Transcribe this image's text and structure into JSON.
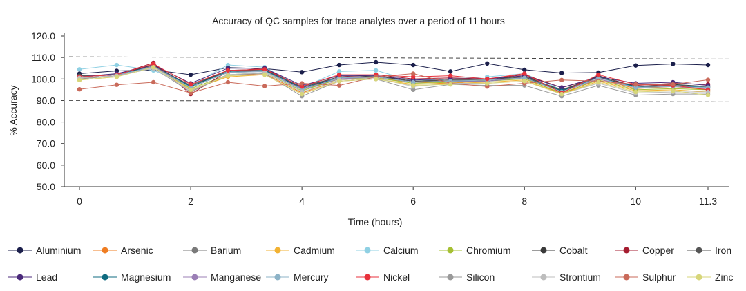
{
  "chart_data": {
    "type": "line",
    "title": "Accuracy of QC samples for trace analytes over a period of 11 hours",
    "xlabel": "Time (hours)",
    "ylabel": "% Accuracy",
    "xlim": [
      0,
      11.3
    ],
    "ylim": [
      50,
      120
    ],
    "x_ticks": [
      0,
      2,
      4,
      6,
      8,
      10,
      11.3
    ],
    "x_tick_labels": [
      "0",
      "2",
      "4",
      "6",
      "8",
      "10",
      "11.3"
    ],
    "y_ticks": [
      50,
      60,
      70,
      80,
      90,
      100,
      110,
      120
    ],
    "y_tick_labels": [
      "50.0",
      "60.0",
      "70.0",
      "80.0",
      "90.0",
      "100.0",
      "110.0",
      "120.0"
    ],
    "reference_lines": [
      {
        "style": "dashed",
        "from": [
          0,
          110.3
        ],
        "to": [
          11.3,
          109.3
        ]
      },
      {
        "style": "dashed",
        "from": [
          0,
          90.0
        ],
        "to": [
          11.3,
          89.4
        ]
      }
    ],
    "x": [
      0,
      0.67,
      1.33,
      2,
      2.67,
      3.33,
      4,
      4.67,
      5.33,
      6,
      6.67,
      7.33,
      8,
      8.67,
      9.33,
      10,
      10.67,
      11.3
    ],
    "legend_position": "bottom",
    "series": [
      {
        "name": "Aluminium",
        "color": "#1b1f4b",
        "values": [
          102.5,
          103.8,
          104.2,
          102.0,
          105.3,
          104.8,
          103.2,
          106.5,
          107.8,
          106.5,
          103.5,
          107.2,
          104.3,
          102.8,
          103.0,
          106.3,
          107.0,
          106.5
        ]
      },
      {
        "name": "Arsenic",
        "color": "#ef7d22",
        "values": [
          100.5,
          101.5,
          107.0,
          94.5,
          101.5,
          102.5,
          93.5,
          99.5,
          100.5,
          98.5,
          98.0,
          99.5,
          100.5,
          93.0,
          100.0,
          95.5,
          96.5,
          95.0
        ]
      },
      {
        "name": "Barium",
        "color": "#7a7a7a",
        "values": [
          101.0,
          102.0,
          106.0,
          96.0,
          103.0,
          104.0,
          95.0,
          100.0,
          101.0,
          99.0,
          99.0,
          99.0,
          101.0,
          94.0,
          101.0,
          96.0,
          97.0,
          96.0
        ]
      },
      {
        "name": "Cadmium",
        "color": "#f2b233",
        "values": [
          99.5,
          101.0,
          106.5,
          95.0,
          101.0,
          102.0,
          93.0,
          99.0,
          100.0,
          97.5,
          98.0,
          98.5,
          99.5,
          93.0,
          99.0,
          94.5,
          95.0,
          94.0
        ]
      },
      {
        "name": "Calcium",
        "color": "#8fd0e3",
        "values": [
          104.5,
          106.5,
          104.0,
          97.0,
          106.5,
          105.5,
          96.0,
          103.5,
          104.0,
          99.0,
          100.0,
          101.0,
          102.5,
          95.0,
          100.5,
          96.0,
          97.0,
          96.0
        ]
      },
      {
        "name": "Chromium",
        "color": "#a6c033",
        "values": [
          100.0,
          101.5,
          106.0,
          95.5,
          102.0,
          103.0,
          94.5,
          100.0,
          100.5,
          98.0,
          98.5,
          99.0,
          100.0,
          93.5,
          99.5,
          95.0,
          95.5,
          95.0
        ]
      },
      {
        "name": "Cobalt",
        "color": "#3a3a3a",
        "values": [
          101.5,
          102.0,
          106.5,
          96.5,
          104.0,
          104.5,
          95.5,
          100.5,
          101.5,
          99.0,
          99.5,
          99.5,
          101.5,
          94.5,
          101.5,
          96.5,
          97.5,
          96.5
        ]
      },
      {
        "name": "Copper",
        "color": "#a51c30",
        "values": [
          101.0,
          102.0,
          107.5,
          93.0,
          103.5,
          105.0,
          96.0,
          101.0,
          102.0,
          100.0,
          100.5,
          100.0,
          102.0,
          96.0,
          100.5,
          97.0,
          98.0,
          97.5
        ]
      },
      {
        "name": "Iron",
        "color": "#555555",
        "values": [
          101.5,
          102.0,
          106.0,
          97.0,
          104.0,
          104.0,
          96.5,
          101.0,
          101.0,
          99.0,
          99.5,
          99.5,
          101.0,
          95.0,
          101.0,
          96.0,
          97.0,
          96.5
        ]
      },
      {
        "name": "Lead",
        "color": "#4b2a7b",
        "values": [
          101.0,
          102.5,
          106.5,
          98.0,
          105.0,
          105.0,
          97.0,
          101.5,
          101.5,
          99.5,
          100.0,
          100.0,
          101.5,
          96.0,
          101.0,
          98.0,
          98.5,
          97.0
        ]
      },
      {
        "name": "Magnesium",
        "color": "#0f6b80",
        "values": [
          101.0,
          102.0,
          106.0,
          96.5,
          103.5,
          104.0,
          96.0,
          100.5,
          101.0,
          98.5,
          99.0,
          99.0,
          100.5,
          94.5,
          100.5,
          96.5,
          97.0,
          96.0
        ]
      },
      {
        "name": "Manganese",
        "color": "#9b7fb6",
        "values": [
          100.5,
          101.5,
          106.0,
          96.0,
          103.0,
          103.5,
          95.5,
          100.0,
          101.0,
          98.5,
          99.0,
          99.0,
          100.5,
          94.0,
          100.0,
          96.0,
          96.5,
          95.5
        ]
      },
      {
        "name": "Mercury",
        "color": "#8db3c7",
        "values": [
          101.0,
          102.0,
          105.5,
          96.0,
          103.0,
          103.5,
          95.0,
          100.5,
          101.0,
          98.5,
          99.0,
          99.5,
          100.5,
          94.0,
          100.5,
          96.0,
          96.5,
          96.0
        ]
      },
      {
        "name": "Nickel",
        "color": "#e8323c",
        "values": [
          101.0,
          102.0,
          107.0,
          97.5,
          104.0,
          104.5,
          96.5,
          102.0,
          102.0,
          101.0,
          101.5,
          100.0,
          102.5,
          93.5,
          102.0,
          97.5,
          97.0,
          95.0
        ]
      },
      {
        "name": "Silicon",
        "color": "#9a9a9a",
        "values": [
          100.0,
          101.5,
          105.0,
          94.0,
          102.0,
          102.5,
          92.0,
          99.0,
          100.0,
          95.0,
          97.5,
          97.0,
          97.0,
          92.0,
          97.0,
          92.5,
          93.0,
          93.0
        ]
      },
      {
        "name": "Strontium",
        "color": "#bdbdbd",
        "values": [
          100.5,
          101.5,
          105.0,
          94.5,
          102.0,
          103.0,
          94.0,
          99.5,
          100.5,
          96.5,
          98.0,
          98.0,
          99.0,
          93.0,
          98.0,
          93.5,
          94.0,
          94.0
        ]
      },
      {
        "name": "Sulphur",
        "color": "#c96a5a",
        "values": [
          95.2,
          97.3,
          98.5,
          93.5,
          98.5,
          96.7,
          98.0,
          97.0,
          101.0,
          102.5,
          98.0,
          96.5,
          98.0,
          99.5,
          99.0,
          97.5,
          97.5,
          99.6
        ]
      },
      {
        "name": "Zinc",
        "color": "#d7d67a",
        "values": [
          99.5,
          101.0,
          105.5,
          95.0,
          101.5,
          102.0,
          93.0,
          99.0,
          100.0,
          97.0,
          97.5,
          98.0,
          99.0,
          93.0,
          98.5,
          94.0,
          94.5,
          92.5
        ]
      }
    ]
  }
}
